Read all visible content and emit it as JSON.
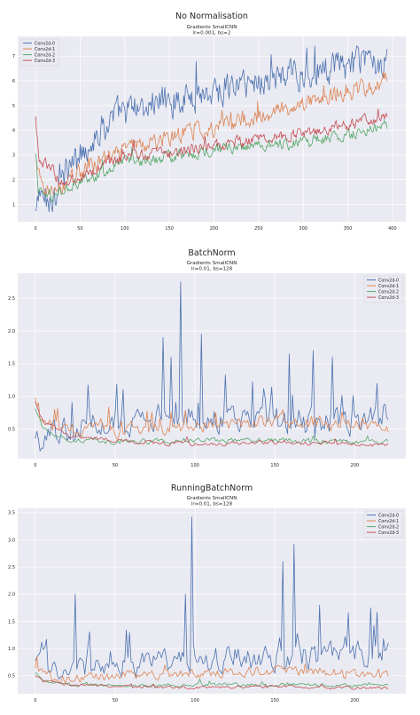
{
  "colors": {
    "axes_bg": "#eaeaf2",
    "grid": "#ffffff",
    "series": [
      "#4c72b0",
      "#dd8452",
      "#55a868",
      "#c44e52"
    ]
  },
  "chart_data": [
    {
      "type": "line",
      "panel_title": "No Normalisation",
      "title_lines": [
        "Gradients SmallCNN",
        "lr=0.001, bs=2"
      ],
      "xlim": [
        -20,
        415
      ],
      "ylim": [
        0.3,
        7.8
      ],
      "xticks": [
        0,
        50,
        100,
        150,
        200,
        250,
        300,
        350,
        400
      ],
      "yticks": [
        1,
        2,
        3,
        4,
        5,
        6,
        7
      ],
      "legend_position": "top-left",
      "n_points": 395,
      "series": [
        {
          "name": "Conv2d-0",
          "keyframes": [
            [
              0,
              0.6
            ],
            [
              5,
              1.4
            ],
            [
              15,
              1.1
            ],
            [
              30,
              2.0
            ],
            [
              50,
              3.1
            ],
            [
              70,
              3.9
            ],
            [
              90,
              4.6
            ],
            [
              120,
              5.0
            ],
            [
              160,
              5.3
            ],
            [
              200,
              5.6
            ],
            [
              250,
              6.0
            ],
            [
              300,
              6.3
            ],
            [
              350,
              6.6
            ],
            [
              395,
              6.9
            ]
          ],
          "noise": 0.55,
          "spike_prob": 0.05,
          "spike_amp": 1.2
        },
        {
          "name": "Conv2d-1",
          "keyframes": [
            [
              0,
              2.7
            ],
            [
              5,
              1.9
            ],
            [
              20,
              1.5
            ],
            [
              50,
              2.3
            ],
            [
              100,
              3.2
            ],
            [
              150,
              3.7
            ],
            [
              200,
              4.1
            ],
            [
              250,
              4.6
            ],
            [
              300,
              5.1
            ],
            [
              350,
              5.5
            ],
            [
              395,
              6.1
            ]
          ],
          "noise": 0.3,
          "spike_prob": 0.02,
          "spike_amp": 0.6
        },
        {
          "name": "Conv2d-2",
          "keyframes": [
            [
              0,
              3.0
            ],
            [
              3,
              1.6
            ],
            [
              20,
              1.3
            ],
            [
              50,
              1.9
            ],
            [
              100,
              2.7
            ],
            [
              150,
              2.9
            ],
            [
              200,
              3.2
            ],
            [
              250,
              3.4
            ],
            [
              300,
              3.5
            ],
            [
              350,
              3.8
            ],
            [
              395,
              4.2
            ]
          ],
          "noise": 0.2,
          "spike_prob": 0.02,
          "spike_amp": 0.4
        },
        {
          "name": "Conv2d-3",
          "keyframes": [
            [
              0,
              4.5
            ],
            [
              4,
              2.7
            ],
            [
              15,
              2.6
            ],
            [
              30,
              1.8
            ],
            [
              60,
              2.3
            ],
            [
              100,
              2.9
            ],
            [
              150,
              3.1
            ],
            [
              200,
              3.4
            ],
            [
              250,
              3.6
            ],
            [
              300,
              3.9
            ],
            [
              350,
              4.2
            ],
            [
              395,
              4.6
            ]
          ],
          "noise": 0.2,
          "spike_prob": 0.02,
          "spike_amp": 0.5
        }
      ]
    },
    {
      "type": "line",
      "panel_title": "BatchNorm",
      "title_lines": [
        "Gradients SmallCNN",
        "lr=0.01, bs=128"
      ],
      "xlim": [
        -11,
        232
      ],
      "ylim": [
        0.05,
        2.88
      ],
      "xticks": [
        0,
        50,
        100,
        150,
        200
      ],
      "yticks": [
        0.5,
        1.0,
        1.5,
        2.0,
        2.5
      ],
      "legend_position": "top-right",
      "n_points": 222,
      "series": [
        {
          "name": "Conv2d-0",
          "keyframes": [
            [
              0,
              0.3
            ],
            [
              5,
              0.2
            ],
            [
              10,
              0.35
            ],
            [
              20,
              0.5
            ],
            [
              40,
              0.6
            ],
            [
              60,
              0.6
            ],
            [
              80,
              0.65
            ],
            [
              100,
              0.7
            ],
            [
              150,
              0.65
            ],
            [
              200,
              0.6
            ],
            [
              221,
              0.8
            ]
          ],
          "noise": 0.18,
          "spike_prob": 0.12,
          "spike_amp": 0.55,
          "spikes": [
            [
              91,
              2.75
            ],
            [
              85,
              1.6
            ],
            [
              80,
              1.9
            ],
            [
              104,
              1.95
            ],
            [
              159,
              1.65
            ],
            [
              174,
              1.7
            ],
            [
              186,
              1.6
            ]
          ]
        },
        {
          "name": "Conv2d-1",
          "keyframes": [
            [
              0,
              0.95
            ],
            [
              3,
              0.75
            ],
            [
              10,
              0.55
            ],
            [
              30,
              0.5
            ],
            [
              60,
              0.45
            ],
            [
              100,
              0.55
            ],
            [
              150,
              0.6
            ],
            [
              200,
              0.6
            ],
            [
              221,
              0.5
            ]
          ],
          "noise": 0.09,
          "spike_prob": 0.07,
          "spike_amp": 0.3
        },
        {
          "name": "Conv2d-2",
          "keyframes": [
            [
              0,
              0.8
            ],
            [
              5,
              0.5
            ],
            [
              20,
              0.35
            ],
            [
              60,
              0.3
            ],
            [
              100,
              0.33
            ],
            [
              150,
              0.33
            ],
            [
              200,
              0.3
            ],
            [
              221,
              0.3
            ]
          ],
          "noise": 0.035,
          "spike_prob": 0.03,
          "spike_amp": 0.1
        },
        {
          "name": "Conv2d-3",
          "keyframes": [
            [
              0,
              0.9
            ],
            [
              5,
              0.6
            ],
            [
              20,
              0.4
            ],
            [
              60,
              0.3
            ],
            [
              100,
              0.28
            ],
            [
              150,
              0.3
            ],
            [
              200,
              0.28
            ],
            [
              221,
              0.25
            ]
          ],
          "noise": 0.03,
          "spike_prob": 0.03,
          "spike_amp": 0.1
        }
      ]
    },
    {
      "type": "line",
      "panel_title": "RunningBatchNorm",
      "title_lines": [
        "Gradients SmallCNN",
        "lr=0.01, bs=128"
      ],
      "xlim": [
        -11,
        232
      ],
      "ylim": [
        0.17,
        3.58
      ],
      "xticks": [
        0,
        50,
        100,
        150,
        200
      ],
      "yticks": [
        0.5,
        1.0,
        1.5,
        2.0,
        2.5,
        3.0,
        3.5
      ],
      "legend_position": "top-right",
      "n_points": 222,
      "series": [
        {
          "name": "Conv2d-0",
          "keyframes": [
            [
              0,
              0.7
            ],
            [
              3,
              1.2
            ],
            [
              8,
              0.55
            ],
            [
              20,
              0.6
            ],
            [
              40,
              0.7
            ],
            [
              60,
              0.7
            ],
            [
              80,
              0.75
            ],
            [
              100,
              0.8
            ],
            [
              150,
              0.85
            ],
            [
              200,
              0.85
            ],
            [
              221,
              1.0
            ]
          ],
          "noise": 0.2,
          "spike_prob": 0.12,
          "spike_amp": 0.6,
          "spikes": [
            [
              98,
              3.42
            ],
            [
              155,
              2.6
            ],
            [
              162,
              2.92
            ],
            [
              25,
              2.0
            ],
            [
              94,
              2.0
            ],
            [
              210,
              1.75
            ],
            [
              178,
              1.8
            ]
          ]
        },
        {
          "name": "Conv2d-1",
          "keyframes": [
            [
              0,
              0.6
            ],
            [
              5,
              0.5
            ],
            [
              20,
              0.45
            ],
            [
              60,
              0.5
            ],
            [
              100,
              0.55
            ],
            [
              150,
              0.6
            ],
            [
              200,
              0.55
            ],
            [
              221,
              0.5
            ]
          ],
          "noise": 0.08,
          "spike_prob": 0.06,
          "spike_amp": 0.3
        },
        {
          "name": "Conv2d-2",
          "keyframes": [
            [
              0,
              0.55
            ],
            [
              5,
              0.4
            ],
            [
              20,
              0.35
            ],
            [
              60,
              0.32
            ],
            [
              100,
              0.33
            ],
            [
              150,
              0.34
            ],
            [
              200,
              0.33
            ],
            [
              221,
              0.32
            ]
          ],
          "noise": 0.03,
          "spike_prob": 0.03,
          "spike_amp": 0.08
        },
        {
          "name": "Conv2d-3",
          "keyframes": [
            [
              0,
              0.5
            ],
            [
              5,
              0.4
            ],
            [
              20,
              0.33
            ],
            [
              60,
              0.3
            ],
            [
              100,
              0.28
            ],
            [
              150,
              0.3
            ],
            [
              200,
              0.28
            ],
            [
              221,
              0.27
            ]
          ],
          "noise": 0.025,
          "spike_prob": 0.03,
          "spike_amp": 0.06
        }
      ]
    }
  ]
}
